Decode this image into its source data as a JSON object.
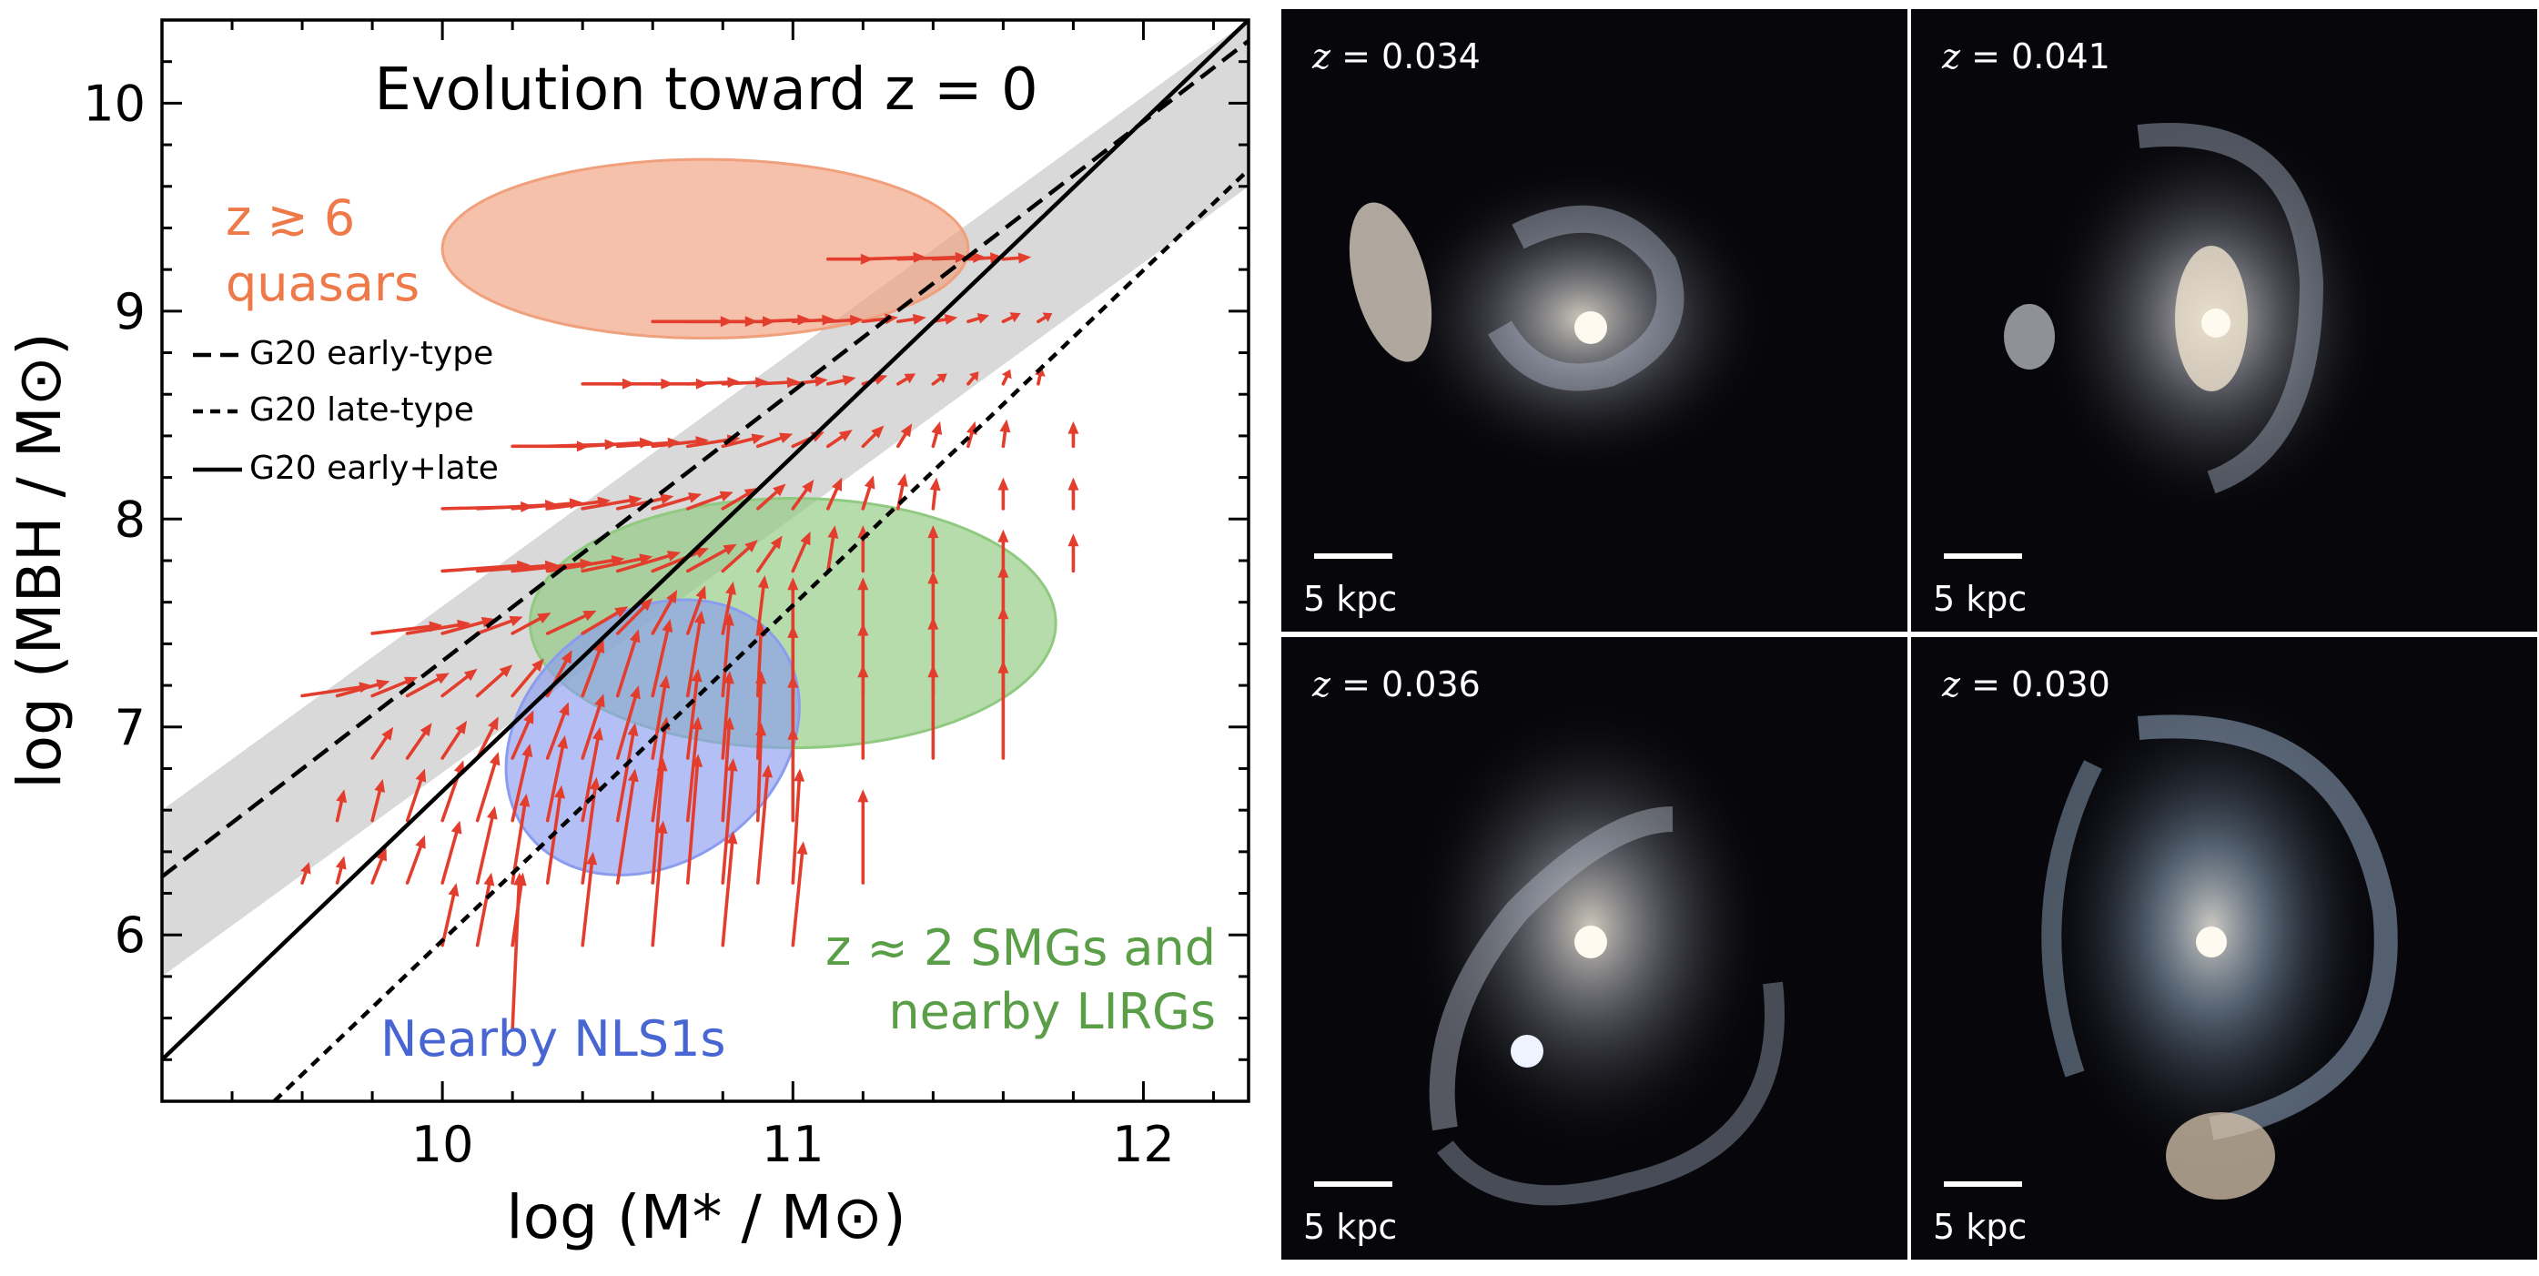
{
  "chart_data": {
    "type": "scatter",
    "title": "Evolution toward z = 0",
    "xlabel": "log (M* / M⊙)",
    "ylabel": "log (MBH / M⊙)",
    "xlim": [
      9.2,
      12.3
    ],
    "ylim": [
      5.2,
      10.4
    ],
    "x_ticks": [
      10,
      11,
      12
    ],
    "y_ticks": [
      6,
      7,
      8,
      9,
      10
    ],
    "grid": false,
    "legend": {
      "placement": "center-left",
      "entries": [
        {
          "label": "G20 early-type",
          "style": "dashed"
        },
        {
          "label": "G20 late-type",
          "style": "dotted"
        },
        {
          "label": "G20 early+late",
          "style": "solid"
        }
      ]
    },
    "relations": [
      {
        "label": "G20 early-type",
        "style": "dashed",
        "points": [
          [
            9.2,
            6.28
          ],
          [
            12.3,
            10.3
          ]
        ]
      },
      {
        "label": "G20 late-type",
        "style": "dotted",
        "points": [
          [
            9.52,
            5.2
          ],
          [
            12.3,
            9.68
          ]
        ]
      },
      {
        "label": "G20 early+late",
        "style": "solid",
        "points": [
          [
            9.2,
            5.4
          ],
          [
            12.3,
            10.4
          ]
        ]
      }
    ],
    "scatter_band": {
      "color": "#d9d9d9",
      "lower": [
        [
          9.2,
          5.8
        ],
        [
          12.3,
          9.6
        ]
      ],
      "upper": [
        [
          9.2,
          6.6
        ],
        [
          12.3,
          10.4
        ]
      ]
    },
    "regions": [
      {
        "label_lines": [
          "z ≳ 6",
          "quasars"
        ],
        "color": "#f0a07c",
        "text_color": "#ee7a4a",
        "center": [
          10.75,
          9.3
        ],
        "semi_axes": [
          0.75,
          0.43
        ]
      },
      {
        "label_lines": [
          "z ≈ 2 SMGs and",
          "nearby LIRGs"
        ],
        "color": "#8fca80",
        "text_color": "#5a9e47",
        "center": [
          11.0,
          7.5
        ],
        "semi_axes": [
          0.75,
          0.6
        ]
      },
      {
        "label_lines": [
          "Nearby NLS1s"
        ],
        "color": "#8b9cef",
        "text_color": "#4866d2",
        "center": [
          10.6,
          6.95
        ],
        "semi_axes": [
          0.45,
          0.6
        ],
        "rotation_deg": 37
      }
    ],
    "arrow_color": "#e23d2d",
    "arrows": [
      [
        11.1,
        9.25,
        11.23,
        9.25
      ],
      [
        11.2,
        9.25,
        11.38,
        9.26
      ],
      [
        11.3,
        9.25,
        11.5,
        9.26
      ],
      [
        11.4,
        9.25,
        11.55,
        9.26
      ],
      [
        11.5,
        9.25,
        11.6,
        9.26
      ],
      [
        11.6,
        9.25,
        11.68,
        9.26
      ],
      [
        10.6,
        8.95,
        10.83,
        8.95
      ],
      [
        10.7,
        8.95,
        10.9,
        8.95
      ],
      [
        10.8,
        8.95,
        10.95,
        8.95
      ],
      [
        10.9,
        8.95,
        11.05,
        8.96
      ],
      [
        11.0,
        8.95,
        11.12,
        8.96
      ],
      [
        11.1,
        8.95,
        11.2,
        8.96
      ],
      [
        11.2,
        8.95,
        11.3,
        8.97
      ],
      [
        11.3,
        8.95,
        11.38,
        8.97
      ],
      [
        11.4,
        8.95,
        11.47,
        8.97
      ],
      [
        11.5,
        8.95,
        11.56,
        8.98
      ],
      [
        11.6,
        8.95,
        11.65,
        8.99
      ],
      [
        11.7,
        8.95,
        11.74,
        8.99
      ],
      [
        10.4,
        8.65,
        10.55,
        8.65
      ],
      [
        10.5,
        8.65,
        10.66,
        8.65
      ],
      [
        10.6,
        8.65,
        10.76,
        8.65
      ],
      [
        10.7,
        8.65,
        10.85,
        8.66
      ],
      [
        10.8,
        8.65,
        10.93,
        8.66
      ],
      [
        10.9,
        8.65,
        11.02,
        8.66
      ],
      [
        11.0,
        8.65,
        11.1,
        8.67
      ],
      [
        11.1,
        8.65,
        11.18,
        8.68
      ],
      [
        11.2,
        8.65,
        11.27,
        8.69
      ],
      [
        11.3,
        8.65,
        11.35,
        8.7
      ],
      [
        11.4,
        8.65,
        11.44,
        8.7
      ],
      [
        11.5,
        8.65,
        11.53,
        8.71
      ],
      [
        11.6,
        8.65,
        11.62,
        8.72
      ],
      [
        11.7,
        8.65,
        11.71,
        8.73
      ],
      [
        10.2,
        8.35,
        10.42,
        8.35
      ],
      [
        10.3,
        8.35,
        10.5,
        8.36
      ],
      [
        10.4,
        8.35,
        10.6,
        8.37
      ],
      [
        10.5,
        8.35,
        10.68,
        8.37
      ],
      [
        10.6,
        8.35,
        10.76,
        8.38
      ],
      [
        10.7,
        8.35,
        10.85,
        8.39
      ],
      [
        10.8,
        8.35,
        10.92,
        8.4
      ],
      [
        10.9,
        8.35,
        11.0,
        8.41
      ],
      [
        11.0,
        8.35,
        11.09,
        8.42
      ],
      [
        11.1,
        8.35,
        11.17,
        8.43
      ],
      [
        11.2,
        8.35,
        11.26,
        8.45
      ],
      [
        11.3,
        8.35,
        11.34,
        8.46
      ],
      [
        11.4,
        8.35,
        11.42,
        8.47
      ],
      [
        11.5,
        8.35,
        11.52,
        8.47
      ],
      [
        11.6,
        8.35,
        11.61,
        8.48
      ],
      [
        11.8,
        8.35,
        11.8,
        8.47
      ],
      [
        10.0,
        8.05,
        10.26,
        8.06
      ],
      [
        10.1,
        8.05,
        10.33,
        8.07
      ],
      [
        10.2,
        8.05,
        10.4,
        8.08
      ],
      [
        10.3,
        8.05,
        10.48,
        8.09
      ],
      [
        10.4,
        8.05,
        10.57,
        8.1
      ],
      [
        10.5,
        8.05,
        10.66,
        8.11
      ],
      [
        10.6,
        8.05,
        10.74,
        8.12
      ],
      [
        10.7,
        8.05,
        10.83,
        8.13
      ],
      [
        10.8,
        8.05,
        10.9,
        8.15
      ],
      [
        10.9,
        8.05,
        10.98,
        8.17
      ],
      [
        11.0,
        8.05,
        11.06,
        8.19
      ],
      [
        11.1,
        8.05,
        11.14,
        8.2
      ],
      [
        11.2,
        8.05,
        11.23,
        8.21
      ],
      [
        11.3,
        8.05,
        11.32,
        8.22
      ],
      [
        11.4,
        8.05,
        11.41,
        8.2
      ],
      [
        11.6,
        8.05,
        11.6,
        8.2
      ],
      [
        11.8,
        8.05,
        11.8,
        8.2
      ],
      [
        10.0,
        7.75,
        10.25,
        7.78
      ],
      [
        10.1,
        7.75,
        10.33,
        7.78
      ],
      [
        10.2,
        7.75,
        10.43,
        7.79
      ],
      [
        10.3,
        7.75,
        10.52,
        7.81
      ],
      [
        10.4,
        7.75,
        10.6,
        7.82
      ],
      [
        10.5,
        7.75,
        10.68,
        7.84
      ],
      [
        10.6,
        7.75,
        10.76,
        7.86
      ],
      [
        10.7,
        7.75,
        10.84,
        7.88
      ],
      [
        10.8,
        7.75,
        10.9,
        7.9
      ],
      [
        10.9,
        7.75,
        10.97,
        7.92
      ],
      [
        11.0,
        7.75,
        11.05,
        7.94
      ],
      [
        11.1,
        7.75,
        11.12,
        7.97
      ],
      [
        11.2,
        7.75,
        11.2,
        7.97
      ],
      [
        11.4,
        7.75,
        11.4,
        7.97
      ],
      [
        11.6,
        7.75,
        11.6,
        7.95
      ],
      [
        11.8,
        7.75,
        11.8,
        7.93
      ],
      [
        9.8,
        7.45,
        10.0,
        7.49
      ],
      [
        9.9,
        7.45,
        10.08,
        7.5
      ],
      [
        10.0,
        7.45,
        10.15,
        7.52
      ],
      [
        10.1,
        7.45,
        10.23,
        7.53
      ],
      [
        10.2,
        7.45,
        10.31,
        7.55
      ],
      [
        10.3,
        7.45,
        10.44,
        7.56
      ],
      [
        10.4,
        7.45,
        10.53,
        7.58
      ],
      [
        10.5,
        7.45,
        10.6,
        7.62
      ],
      [
        10.6,
        7.45,
        10.67,
        7.66
      ],
      [
        10.7,
        7.45,
        10.75,
        7.68
      ],
      [
        10.8,
        7.45,
        10.83,
        7.7
      ],
      [
        10.9,
        7.45,
        10.92,
        7.73
      ],
      [
        11.0,
        7.45,
        11.0,
        7.72
      ],
      [
        11.2,
        7.45,
        11.2,
        7.72
      ],
      [
        11.4,
        7.45,
        11.4,
        7.75
      ],
      [
        11.6,
        7.45,
        11.6,
        7.78
      ],
      [
        9.6,
        7.15,
        9.8,
        7.2
      ],
      [
        9.7,
        7.15,
        9.85,
        7.22
      ],
      [
        9.8,
        7.15,
        9.93,
        7.24
      ],
      [
        9.9,
        7.15,
        10.02,
        7.26
      ],
      [
        10.0,
        7.15,
        10.1,
        7.28
      ],
      [
        10.1,
        7.15,
        10.2,
        7.3
      ],
      [
        10.2,
        7.15,
        10.29,
        7.33
      ],
      [
        10.3,
        7.15,
        10.37,
        7.37
      ],
      [
        10.4,
        7.15,
        10.46,
        7.42
      ],
      [
        10.5,
        7.15,
        10.56,
        7.47
      ],
      [
        10.6,
        7.15,
        10.65,
        7.52
      ],
      [
        10.7,
        7.15,
        10.74,
        7.56
      ],
      [
        10.8,
        7.15,
        10.82,
        7.55
      ],
      [
        10.9,
        7.15,
        10.91,
        7.5
      ],
      [
        11.0,
        7.15,
        11.0,
        7.49
      ],
      [
        11.2,
        7.15,
        11.2,
        7.5
      ],
      [
        11.4,
        7.15,
        11.4,
        7.53
      ],
      [
        11.6,
        7.15,
        11.6,
        7.58
      ],
      [
        9.8,
        6.85,
        9.86,
        7.0
      ],
      [
        9.9,
        6.85,
        9.97,
        7.02
      ],
      [
        10.0,
        6.85,
        10.07,
        7.03
      ],
      [
        10.1,
        6.85,
        10.16,
        7.05
      ],
      [
        10.2,
        6.85,
        10.26,
        7.08
      ],
      [
        10.3,
        6.85,
        10.36,
        7.12
      ],
      [
        10.4,
        6.85,
        10.46,
        7.16
      ],
      [
        10.5,
        6.85,
        10.56,
        7.2
      ],
      [
        10.6,
        6.85,
        10.64,
        7.25
      ],
      [
        10.7,
        6.85,
        10.73,
        7.28
      ],
      [
        10.8,
        6.85,
        10.82,
        7.27
      ],
      [
        10.9,
        6.85,
        10.91,
        7.27
      ],
      [
        11.0,
        6.85,
        11.0,
        7.25
      ],
      [
        11.2,
        6.85,
        11.2,
        7.3
      ],
      [
        11.4,
        6.85,
        11.4,
        7.3
      ],
      [
        11.6,
        6.85,
        11.6,
        7.32
      ],
      [
        9.7,
        6.55,
        9.72,
        6.7
      ],
      [
        9.8,
        6.55,
        9.83,
        6.75
      ],
      [
        9.9,
        6.55,
        9.95,
        6.8
      ],
      [
        10.0,
        6.55,
        10.06,
        6.84
      ],
      [
        10.1,
        6.55,
        10.16,
        6.88
      ],
      [
        10.2,
        6.55,
        10.25,
        6.92
      ],
      [
        10.3,
        6.55,
        10.35,
        6.96
      ],
      [
        10.4,
        6.55,
        10.45,
        7.0
      ],
      [
        10.5,
        6.55,
        10.55,
        7.02
      ],
      [
        10.6,
        6.55,
        10.64,
        7.05
      ],
      [
        10.7,
        6.55,
        10.73,
        7.05
      ],
      [
        10.8,
        6.55,
        10.82,
        7.05
      ],
      [
        10.9,
        6.55,
        10.91,
        7.02
      ],
      [
        11.0,
        6.55,
        11.0,
        7.0
      ],
      [
        9.6,
        6.25,
        9.62,
        6.35
      ],
      [
        9.7,
        6.25,
        9.72,
        6.38
      ],
      [
        9.8,
        6.25,
        9.84,
        6.42
      ],
      [
        9.9,
        6.25,
        9.95,
        6.48
      ],
      [
        10.0,
        6.25,
        10.05,
        6.55
      ],
      [
        10.1,
        6.25,
        10.15,
        6.62
      ],
      [
        10.2,
        6.25,
        10.24,
        6.68
      ],
      [
        10.3,
        6.25,
        10.34,
        6.72
      ],
      [
        10.4,
        6.25,
        10.44,
        6.76
      ],
      [
        10.5,
        6.25,
        10.55,
        6.8
      ],
      [
        10.6,
        6.25,
        10.63,
        6.85
      ],
      [
        10.7,
        6.25,
        10.73,
        6.87
      ],
      [
        10.8,
        6.25,
        10.83,
        6.85
      ],
      [
        10.9,
        6.25,
        10.93,
        6.82
      ],
      [
        11.0,
        6.25,
        11.02,
        6.8
      ],
      [
        11.2,
        6.25,
        11.2,
        6.7
      ],
      [
        10.0,
        5.95,
        10.04,
        6.25
      ],
      [
        10.1,
        5.95,
        10.14,
        6.3
      ],
      [
        10.2,
        5.95,
        10.23,
        6.3
      ],
      [
        10.4,
        5.95,
        10.43,
        6.4
      ],
      [
        10.6,
        5.95,
        10.63,
        6.55
      ],
      [
        10.8,
        5.95,
        10.83,
        6.5
      ],
      [
        11.0,
        5.95,
        11.03,
        6.45
      ],
      [
        10.2,
        5.55,
        10.22,
        6.3
      ]
    ]
  },
  "galaxy_panels": [
    {
      "z_label": "z = 0.034",
      "scale_label": "5 kpc"
    },
    {
      "z_label": "z = 0.041",
      "scale_label": "5 kpc"
    },
    {
      "z_label": "z = 0.036",
      "scale_label": "5 kpc"
    },
    {
      "z_label": "z = 0.030",
      "scale_label": "5 kpc"
    }
  ]
}
